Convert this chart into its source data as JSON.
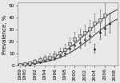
{
  "title": "",
  "ylabel": "Prevalence, %",
  "xlabel": "",
  "xlim": [
    1988.5,
    2008.5
  ],
  "ylim": [
    0,
    52
  ],
  "yticks": [
    0,
    10,
    20,
    30,
    40,
    50
  ],
  "xticks": [
    1989,
    1990,
    1992,
    1994,
    1996,
    1998,
    2000,
    2002,
    2004,
    2006,
    2008
  ],
  "xtick_labels": [
    "1989",
    "1990",
    "1992",
    "1994",
    "1996",
    "1998",
    "2000",
    "2002",
    "2004",
    "2006",
    "2008"
  ],
  "bg_color": "#e8e8e8",
  "squares_x": [
    1989,
    1990,
    1991,
    1992,
    1993,
    1994,
    1995,
    1996,
    1997,
    1998,
    1999,
    2000,
    2001,
    2002,
    2003,
    2004,
    2005,
    2006
  ],
  "squares_y": [
    1.0,
    1.5,
    2.0,
    3.5,
    5.0,
    6.0,
    7.0,
    8.5,
    11.0,
    13.5,
    18.0,
    22.0,
    24.5,
    27.0,
    30.5,
    35.0,
    38.0,
    42.0
  ],
  "squares_yerr_low": [
    0.5,
    0.8,
    0.8,
    1.2,
    1.5,
    1.8,
    2.0,
    2.5,
    3.0,
    3.5,
    4.5,
    5.0,
    5.5,
    6.0,
    6.5,
    7.0,
    7.5,
    8.0
  ],
  "squares_yerr_high": [
    1.0,
    1.2,
    1.2,
    2.0,
    2.2,
    2.5,
    3.0,
    3.5,
    4.0,
    4.5,
    5.5,
    6.0,
    6.0,
    7.0,
    7.5,
    8.0,
    8.5,
    9.5
  ],
  "triangles_x": [
    1989,
    1990,
    1991,
    1992,
    1993,
    1994,
    1995,
    1996,
    1997,
    1998,
    1999,
    2000,
    2001,
    2002,
    2003,
    2004,
    2005,
    2006,
    2007
  ],
  "triangles_y": [
    0.5,
    1.0,
    1.2,
    2.5,
    3.5,
    4.5,
    5.5,
    7.0,
    9.0,
    11.0,
    14.5,
    17.5,
    19.5,
    22.0,
    25.0,
    14.0,
    28.0,
    31.5,
    35.0
  ],
  "triangles_yerr_low": [
    0.3,
    0.3,
    0.4,
    0.8,
    1.0,
    1.2,
    1.5,
    2.0,
    2.5,
    2.8,
    3.5,
    4.0,
    4.5,
    5.0,
    5.5,
    3.0,
    6.0,
    6.5,
    7.5
  ],
  "triangles_yerr_high": [
    0.5,
    0.5,
    0.6,
    1.2,
    1.5,
    1.8,
    2.0,
    2.5,
    3.0,
    3.5,
    4.5,
    5.0,
    5.0,
    5.5,
    6.5,
    4.0,
    7.0,
    7.5,
    8.5
  ],
  "logistic_L1": 55,
  "logistic_k1": 0.28,
  "logistic_x01": 2002.5,
  "logistic_L2": 48,
  "logistic_k2": 0.28,
  "logistic_x02": 2003.5,
  "curve_color": "#222222",
  "square_facecolor": "#cccccc",
  "square_edgecolor": "#444444",
  "triangle_facecolor": "#333333",
  "triangle_edgecolor": "#111111",
  "marker_size": 2.2,
  "line_width": 0.6,
  "font_size": 5.0,
  "tick_font_size": 4.2,
  "elinewidth": 0.5,
  "capsize": 0.8,
  "capthick": 0.4
}
